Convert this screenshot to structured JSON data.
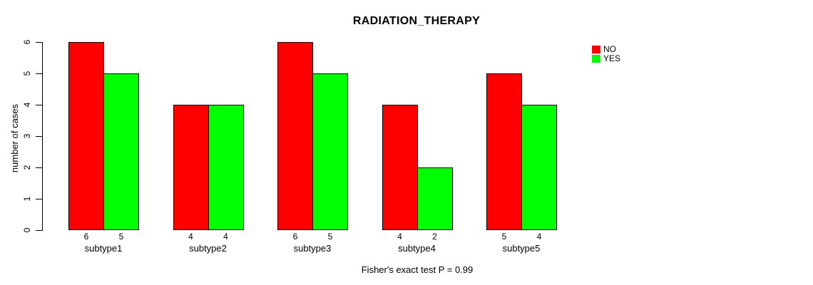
{
  "chart_data": {
    "type": "bar",
    "title": "RADIATION_THERAPY",
    "ylabel": "number of cases",
    "xlabel": "",
    "categories": [
      "subtype1",
      "subtype2",
      "subtype3",
      "subtype4",
      "subtype5"
    ],
    "series": [
      {
        "name": "NO",
        "color": "#ff0000",
        "values": [
          6,
          4,
          6,
          4,
          5
        ]
      },
      {
        "name": "YES",
        "color": "#00ff00",
        "values": [
          5,
          4,
          5,
          2,
          4
        ]
      }
    ],
    "bar_value_labels_shown": true,
    "yticks": [
      0,
      1,
      2,
      3,
      4,
      5,
      6
    ],
    "ylim": [
      0,
      6
    ],
    "grid": false,
    "legend_position": "top-right",
    "footnote": "Fisher's exact test P = 0.99",
    "colors": {
      "background": "#ffffff",
      "bar_border": "#000000",
      "text": "#000000"
    }
  }
}
